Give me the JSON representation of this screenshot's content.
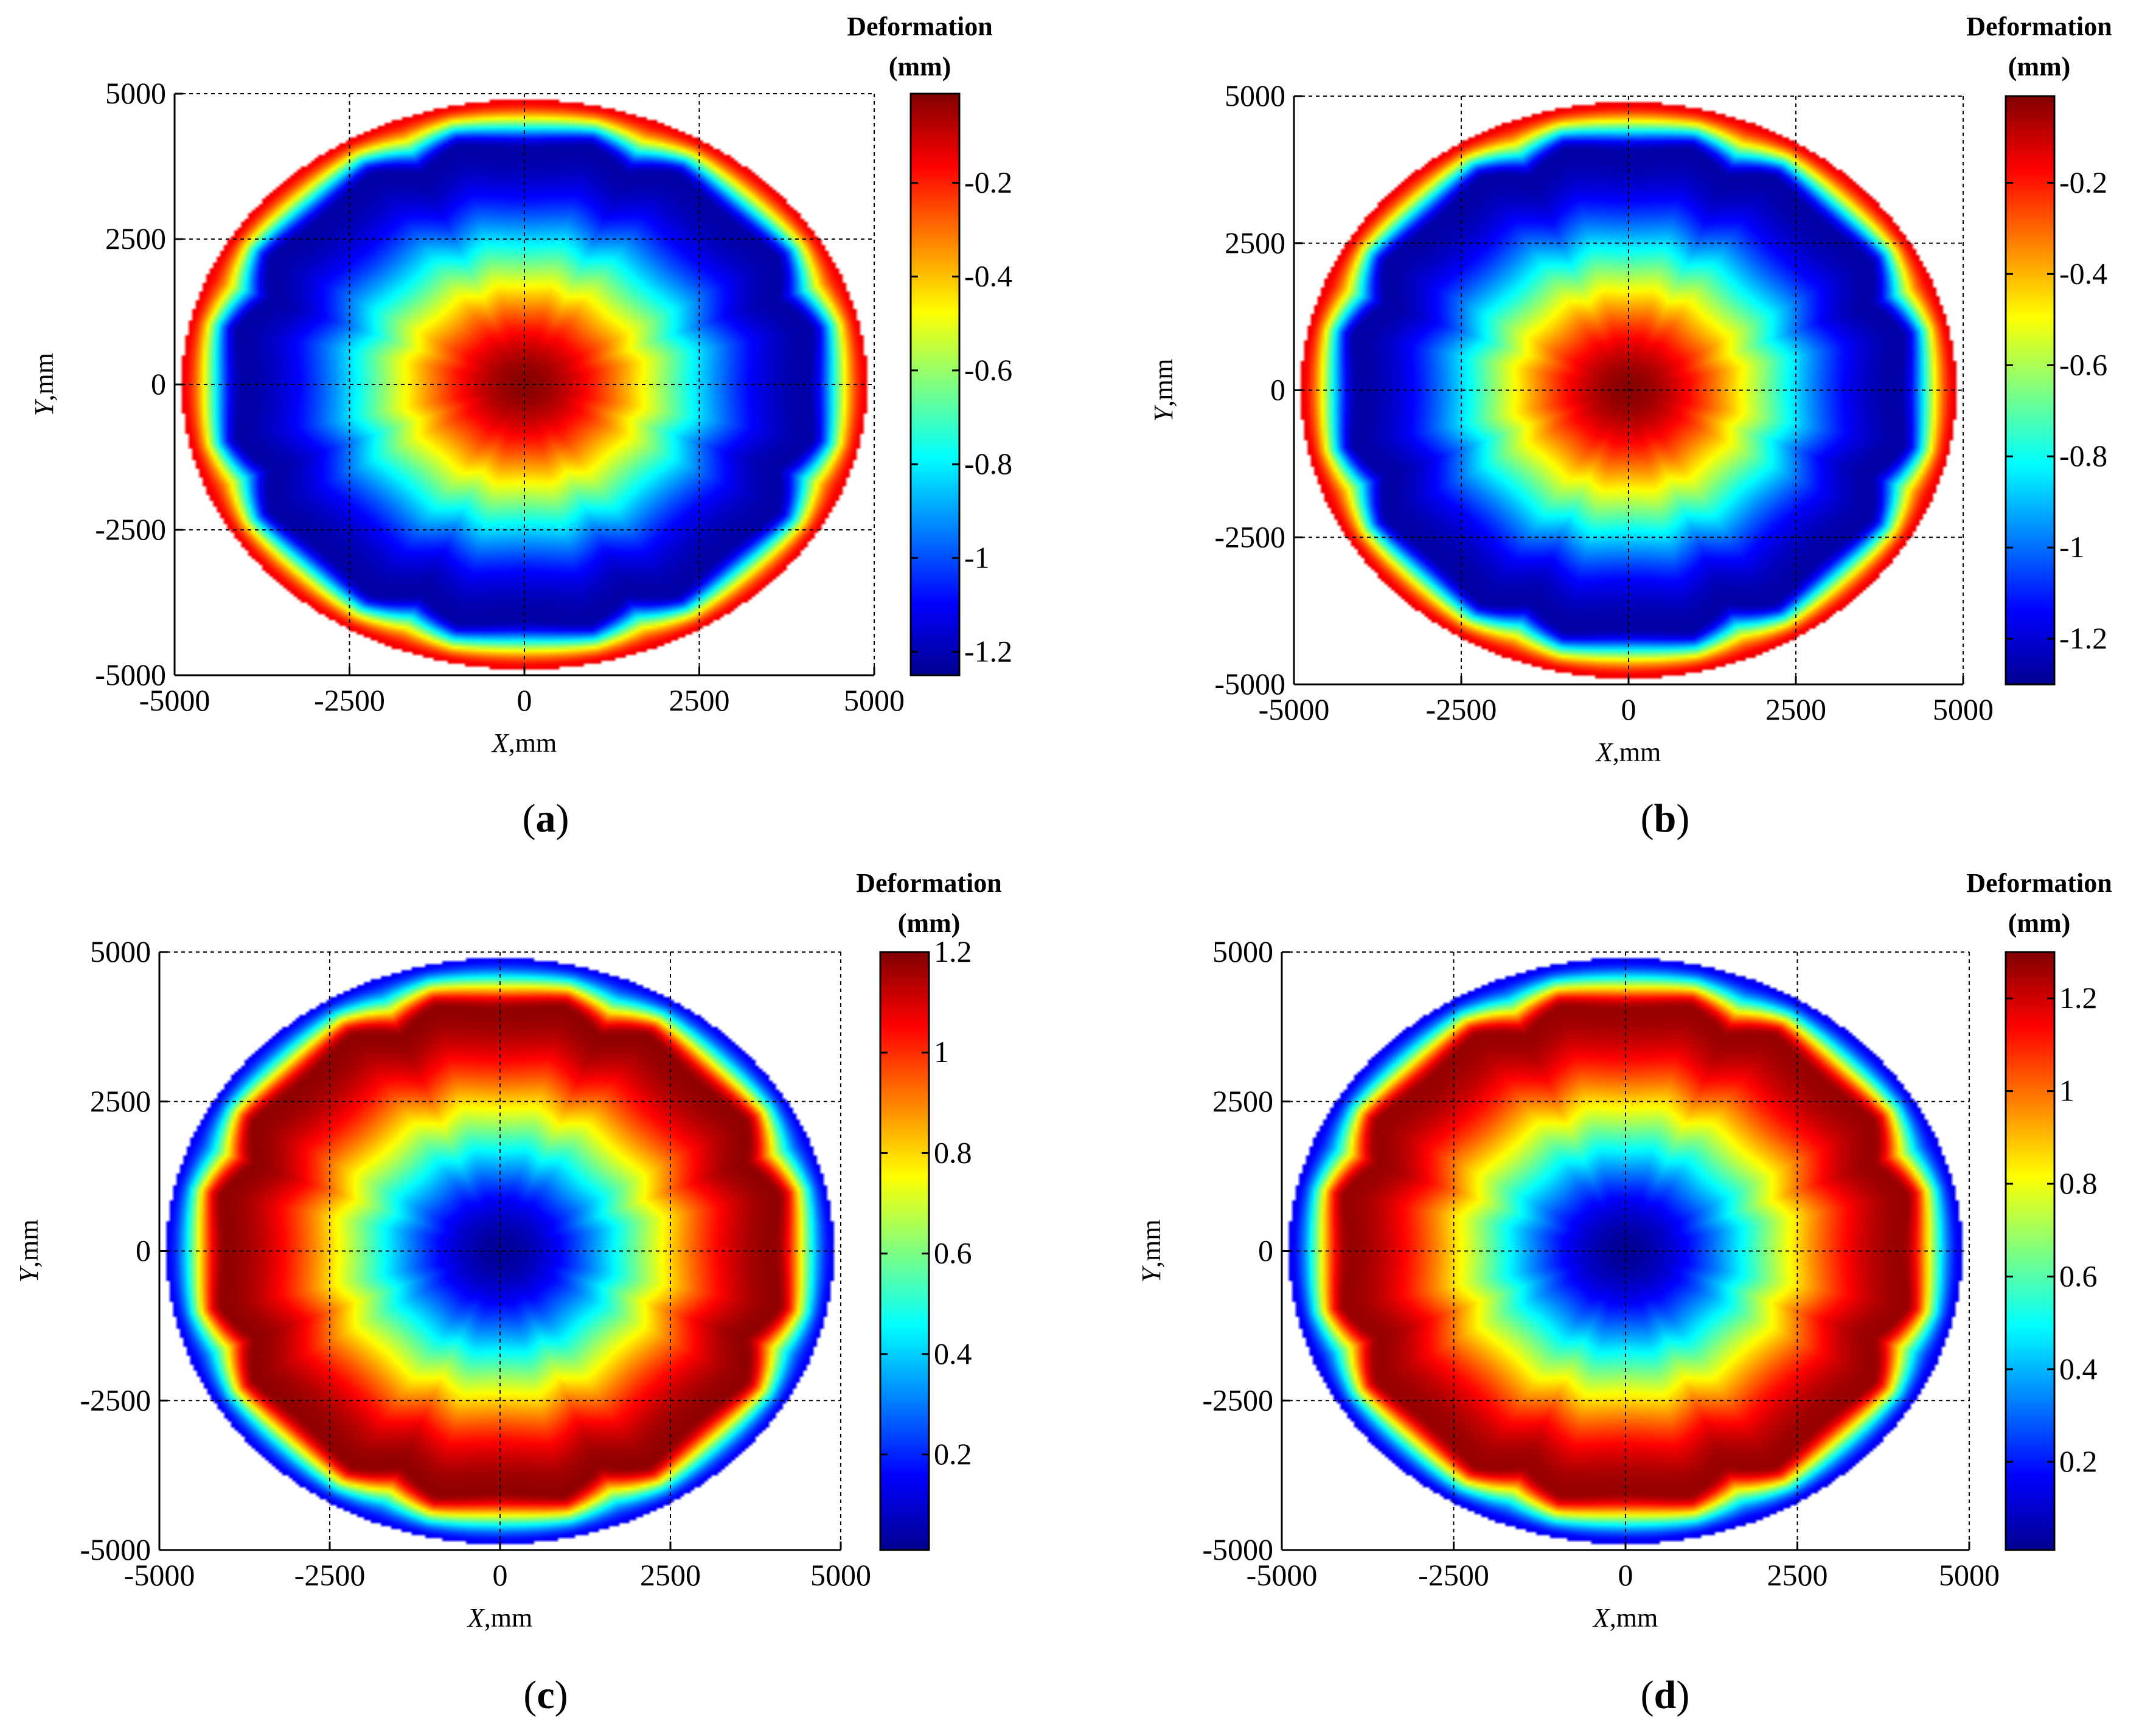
{
  "figure": {
    "colormap": [
      "#00008f",
      "#0000ff",
      "#0080ff",
      "#00ffff",
      "#80ff80",
      "#ffff00",
      "#ff8000",
      "#ff0000",
      "#800000"
    ]
  },
  "chart_data": [
    {
      "type": "heatmap",
      "panel_label": "a",
      "xlabel": {
        "var": "X",
        "unit": ",mm"
      },
      "ylabel": {
        "var": "Y",
        "unit": ",mm"
      },
      "xlim": [
        -5000,
        5000
      ],
      "ylim": [
        -5000,
        5000
      ],
      "xticks": [
        "-5000",
        "-2500",
        "0",
        "2500",
        "5000"
      ],
      "yticks": [
        "5000",
        "2500",
        "0",
        "-2500",
        "-5000"
      ],
      "grid": true,
      "colorbar": {
        "title": [
          "Deformation",
          "(mm)"
        ],
        "range": [
          -1.25,
          -0.01
        ],
        "ticks": [
          -0.2,
          -0.4,
          -0.6,
          -0.8,
          -1,
          -1.2
        ],
        "tick_labels": [
          "-0.2",
          "-0.4",
          "-0.6",
          "-0.8",
          "-1",
          "-1.2"
        ]
      },
      "field": {
        "description_values": "circular mirror deformation field",
        "radius": 4900,
        "center_value": -0.02,
        "ring_value": -1.22,
        "edge_value": -0.15,
        "ring_radius": 4150,
        "support_notch_angles_deg": [
          22,
          68,
          112,
          158,
          202,
          248,
          292,
          338
        ]
      }
    },
    {
      "type": "heatmap",
      "panel_label": "b",
      "xlabel": {
        "var": "X",
        "unit": ",mm"
      },
      "ylabel": {
        "var": "Y",
        "unit": ",mm"
      },
      "xlim": [
        -5000,
        5000
      ],
      "ylim": [
        -5000,
        5000
      ],
      "xticks": [
        "-5000",
        "-2500",
        "0",
        "2500",
        "5000"
      ],
      "yticks": [
        "5000",
        "2500",
        "0",
        "-2500",
        "-5000"
      ],
      "grid": true,
      "colorbar": {
        "title": [
          "Deformation",
          "(mm)"
        ],
        "range": [
          -1.3,
          -0.01
        ],
        "ticks": [
          -0.2,
          -0.4,
          -0.6,
          -0.8,
          -1,
          -1.2
        ],
        "tick_labels": [
          "-0.2",
          "-0.4",
          "-0.6",
          "-0.8",
          "-1",
          "-1.2"
        ]
      },
      "field": {
        "radius": 4900,
        "center_value": -0.02,
        "ring_value": -1.27,
        "edge_value": -0.15,
        "ring_radius": 4150,
        "support_notch_angles_deg": [
          22,
          68,
          112,
          158,
          202,
          248,
          292,
          338
        ]
      }
    },
    {
      "type": "heatmap",
      "panel_label": "c",
      "xlabel": {
        "var": "X",
        "unit": ",mm"
      },
      "ylabel": {
        "var": "Y",
        "unit": ",mm"
      },
      "xlim": [
        -5000,
        5000
      ],
      "ylim": [
        -5000,
        5000
      ],
      "xticks": [
        "-5000",
        "-2500",
        "0",
        "2500",
        "5000"
      ],
      "yticks": [
        "5000",
        "2500",
        "0",
        "-2500",
        "-5000"
      ],
      "grid": true,
      "colorbar": {
        "title": [
          "Deformation",
          "(mm)"
        ],
        "range": [
          0.01,
          1.2
        ],
        "ticks": [
          1.2,
          1,
          0.8,
          0.6,
          0.4,
          0.2
        ],
        "tick_labels": [
          "1.2",
          "1",
          "0.8",
          "0.6",
          "0.4",
          "0.2"
        ]
      },
      "field": {
        "radius": 4900,
        "center_value": 0.02,
        "ring_value": 1.18,
        "edge_value": 0.15,
        "ring_radius": 4150,
        "support_notch_angles_deg": [
          22,
          68,
          112,
          158,
          202,
          248,
          292,
          338
        ]
      }
    },
    {
      "type": "heatmap",
      "panel_label": "d",
      "xlabel": {
        "var": "X",
        "unit": ",mm"
      },
      "ylabel": {
        "var": "Y",
        "unit": ",mm"
      },
      "xlim": [
        -5000,
        5000
      ],
      "ylim": [
        -5000,
        5000
      ],
      "xticks": [
        "-5000",
        "-2500",
        "0",
        "2500",
        "5000"
      ],
      "yticks": [
        "5000",
        "2500",
        "0",
        "-2500",
        "-5000"
      ],
      "grid": true,
      "colorbar": {
        "title": [
          "Deformation",
          "(mm)"
        ],
        "range": [
          0.01,
          1.3
        ],
        "ticks": [
          1.2,
          1,
          0.8,
          0.6,
          0.4,
          0.2
        ],
        "tick_labels": [
          "1.2",
          "1",
          "0.8",
          "0.6",
          "0.4",
          "0.2"
        ]
      },
      "field": {
        "radius": 4900,
        "center_value": 0.02,
        "ring_value": 1.27,
        "edge_value": 0.15,
        "ring_radius": 4150,
        "support_notch_angles_deg": [
          22,
          68,
          112,
          158,
          202,
          248,
          292,
          338
        ]
      }
    }
  ]
}
